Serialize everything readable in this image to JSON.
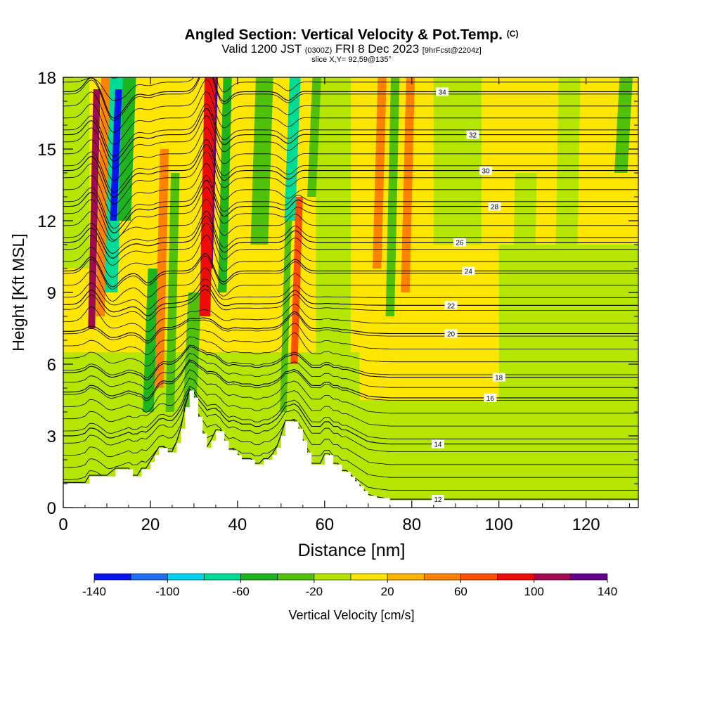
{
  "header": {
    "title": "Angled Section: Vertical Velocity & Pot.Temp.",
    "title_unit": "(C)",
    "valid_main": "Valid 1200 JST",
    "valid_small": "(0300Z)",
    "valid_date": "FRI 8 Dec 2023",
    "forecast_tag": "[9hrFcst@2204z]",
    "slice": "slice X,Y= 92,59@135°"
  },
  "chart_data": {
    "type": "heatmap",
    "xlabel": "Distance [nm]",
    "ylabel": "Height [Kft MSL]",
    "xlim": [
      0,
      132
    ],
    "ylim": [
      0,
      18
    ],
    "x_ticks": [
      0,
      20,
      40,
      60,
      80,
      100,
      120
    ],
    "y_ticks": [
      0,
      3,
      6,
      9,
      12,
      15,
      18
    ],
    "grid": false,
    "colorbar": {
      "label": "Vertical Velocity [cm/s]",
      "bounds": [
        -140,
        -120,
        -100,
        -80,
        -60,
        -40,
        -20,
        0,
        20,
        40,
        60,
        80,
        100,
        120,
        140
      ],
      "tick_labels": [
        "-140",
        "-100",
        "-60",
        "-20",
        "20",
        "60",
        "100",
        "140"
      ],
      "tick_values": [
        -140,
        -100,
        -60,
        -20,
        20,
        60,
        100,
        140
      ],
      "colors": [
        "#0a14f0",
        "#1e6ef0",
        "#00d2f0",
        "#00dc96",
        "#1eb41e",
        "#50c00a",
        "#b4e600",
        "#ffe600",
        "#ffb400",
        "#ff8200",
        "#ff5000",
        "#f00a0a",
        "#a00a50",
        "#64008c"
      ]
    },
    "terrain_profile": {
      "x": [
        0,
        5,
        6,
        8,
        10,
        12,
        13,
        15,
        16,
        17,
        18,
        19,
        20,
        21,
        22,
        23,
        24,
        25,
        26,
        27,
        28,
        29,
        30,
        31,
        32,
        33,
        34,
        35,
        36,
        37,
        38,
        39,
        40,
        41,
        42,
        43,
        44,
        45,
        46,
        47,
        48,
        49,
        50,
        51,
        52,
        53,
        54,
        55,
        56,
        57,
        58,
        59,
        60,
        61,
        62,
        63,
        64,
        65,
        66,
        67,
        68,
        69,
        70,
        72,
        75,
        78,
        80,
        82,
        85,
        90,
        100,
        110,
        120,
        132
      ],
      "height": [
        1.0,
        1.0,
        1.3,
        1.3,
        1.3,
        1.6,
        1.6,
        1.6,
        1.3,
        1.3,
        1.6,
        1.6,
        1.9,
        2.2,
        2.5,
        2.5,
        2.3,
        2.3,
        2.7,
        3.3,
        4.2,
        4.9,
        4.6,
        3.8,
        3.1,
        2.5,
        2.8,
        3.2,
        3.2,
        2.8,
        2.4,
        2.4,
        2.2,
        2.0,
        2.0,
        2.0,
        1.8,
        1.8,
        2.0,
        2.0,
        2.2,
        2.5,
        3.0,
        3.6,
        3.6,
        3.6,
        3.3,
        2.8,
        2.3,
        1.8,
        1.8,
        1.8,
        2.2,
        2.2,
        1.8,
        1.8,
        1.5,
        1.5,
        1.3,
        1.1,
        0.9,
        0.7,
        0.5,
        0.4,
        0.3,
        0.3,
        0.3,
        0.3,
        0.3,
        0.3,
        0.3,
        0.3,
        0.3,
        0.3
      ]
    },
    "vertical_velocity_features": [
      {
        "x": 6.5,
        "w": 1.6,
        "y0": 7.5,
        "y1": 17.5,
        "value": 100
      },
      {
        "x": 8.5,
        "w": 2.0,
        "y0": 8,
        "y1": 18,
        "value": 40
      },
      {
        "x": 11.0,
        "w": 3.0,
        "y0": 9,
        "y1": 18,
        "value": -80
      },
      {
        "x": 11.5,
        "w": 1.6,
        "y0": 12,
        "y1": 17.5,
        "value": -140
      },
      {
        "x": 14.0,
        "w": 3.0,
        "y0": 12,
        "y1": 18,
        "value": -60
      },
      {
        "x": 19.5,
        "w": 2.5,
        "y0": 4,
        "y1": 10,
        "value": -60
      },
      {
        "x": 22.0,
        "w": 2.0,
        "y0": 5,
        "y1": 15,
        "value": 40
      },
      {
        "x": 24.5,
        "w": 2.0,
        "y0": 4,
        "y1": 14,
        "value": -40
      },
      {
        "x": 29.0,
        "w": 3.0,
        "y0": 4,
        "y1": 9,
        "value": -40
      },
      {
        "x": 33.5,
        "w": 1.6,
        "y0": 10,
        "y1": 18,
        "value": 140
      },
      {
        "x": 32.5,
        "w": 2.5,
        "y0": 8,
        "y1": 18,
        "value": 80
      },
      {
        "x": 36.5,
        "w": 2.0,
        "y0": 9,
        "y1": 18,
        "value": -60
      },
      {
        "x": 45.0,
        "w": 4.0,
        "y0": 11,
        "y1": 18,
        "value": -40
      },
      {
        "x": 52.0,
        "w": 2.5,
        "y0": 12,
        "y1": 18,
        "value": -80
      },
      {
        "x": 53.0,
        "w": 1.6,
        "y0": 6,
        "y1": 13,
        "value": 60
      },
      {
        "x": 50.5,
        "w": 1.5,
        "y0": 4,
        "y1": 12,
        "value": -40
      },
      {
        "x": 57.0,
        "w": 2.0,
        "y0": 13,
        "y1": 18,
        "value": -40
      },
      {
        "x": 72.0,
        "w": 2.0,
        "y0": 10,
        "y1": 18,
        "value": 40
      },
      {
        "x": 75.0,
        "w": 2.0,
        "y0": 8,
        "y1": 18,
        "value": -40
      },
      {
        "x": 78.5,
        "w": 2.0,
        "y0": 9,
        "y1": 18,
        "value": 40
      },
      {
        "x": 105.0,
        "w": 5.0,
        "y0": 2,
        "y1": 14,
        "value": -20
      },
      {
        "x": 115.0,
        "w": 5.0,
        "y0": 5,
        "y1": 18,
        "value": -20
      },
      {
        "x": 128.0,
        "w": 3.0,
        "y0": 14,
        "y1": 18,
        "value": -40
      }
    ],
    "isentropes": [
      {
        "label": "12",
        "base_height": 0.8,
        "label_x": 86
      },
      {
        "label": "14",
        "base_height": 3.1,
        "label_x": 86
      },
      {
        "label": "16",
        "base_height": 4.9,
        "label_x": 98
      },
      {
        "label": "18",
        "base_height": 5.7,
        "label_x": 100
      },
      {
        "label": "20",
        "base_height": 7.4,
        "label_x": 89
      },
      {
        "label": "22",
        "base_height": 8.5,
        "label_x": 89
      },
      {
        "label": "24",
        "base_height": 9.9,
        "label_x": 93
      },
      {
        "label": "26",
        "base_height": 11.1,
        "label_x": 91
      },
      {
        "label": "28",
        "base_height": 12.6,
        "label_x": 99
      },
      {
        "label": "30",
        "base_height": 14.1,
        "label_x": 97
      },
      {
        "label": "32",
        "base_height": 15.6,
        "label_x": 94
      },
      {
        "label": "34",
        "base_height": 17.4,
        "label_x": 87
      }
    ]
  }
}
